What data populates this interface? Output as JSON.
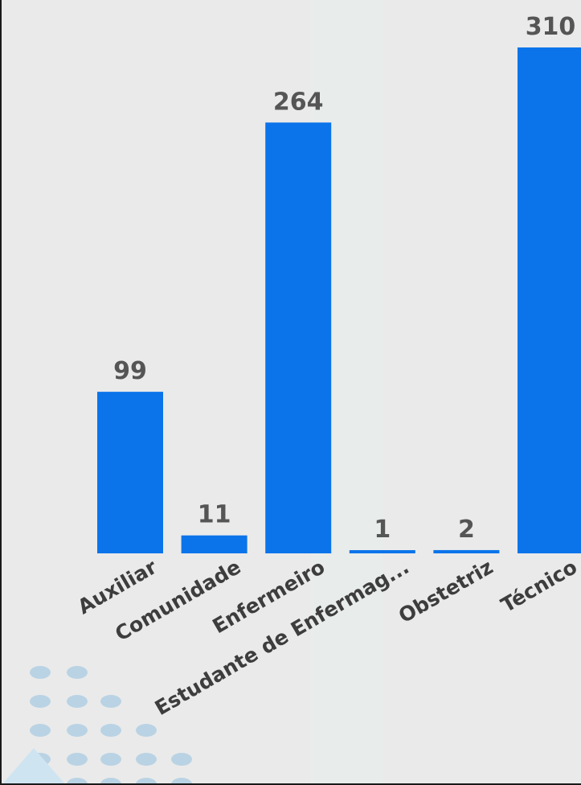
{
  "chart_data": {
    "type": "bar",
    "categories": [
      "Auxiliar",
      "Comunidade",
      "Enfermeiro",
      "Estudante de Enfermag...",
      "Obstetriz",
      "Técnico"
    ],
    "values": [
      99,
      11,
      264,
      1,
      2,
      310
    ],
    "data_labels": [
      "99",
      "11",
      "264",
      "1",
      "2",
      "310"
    ],
    "ylim": [
      0,
      310
    ],
    "grid": false,
    "legend": "none",
    "bar_color": "#0b74ea",
    "label_color": "#555555"
  }
}
